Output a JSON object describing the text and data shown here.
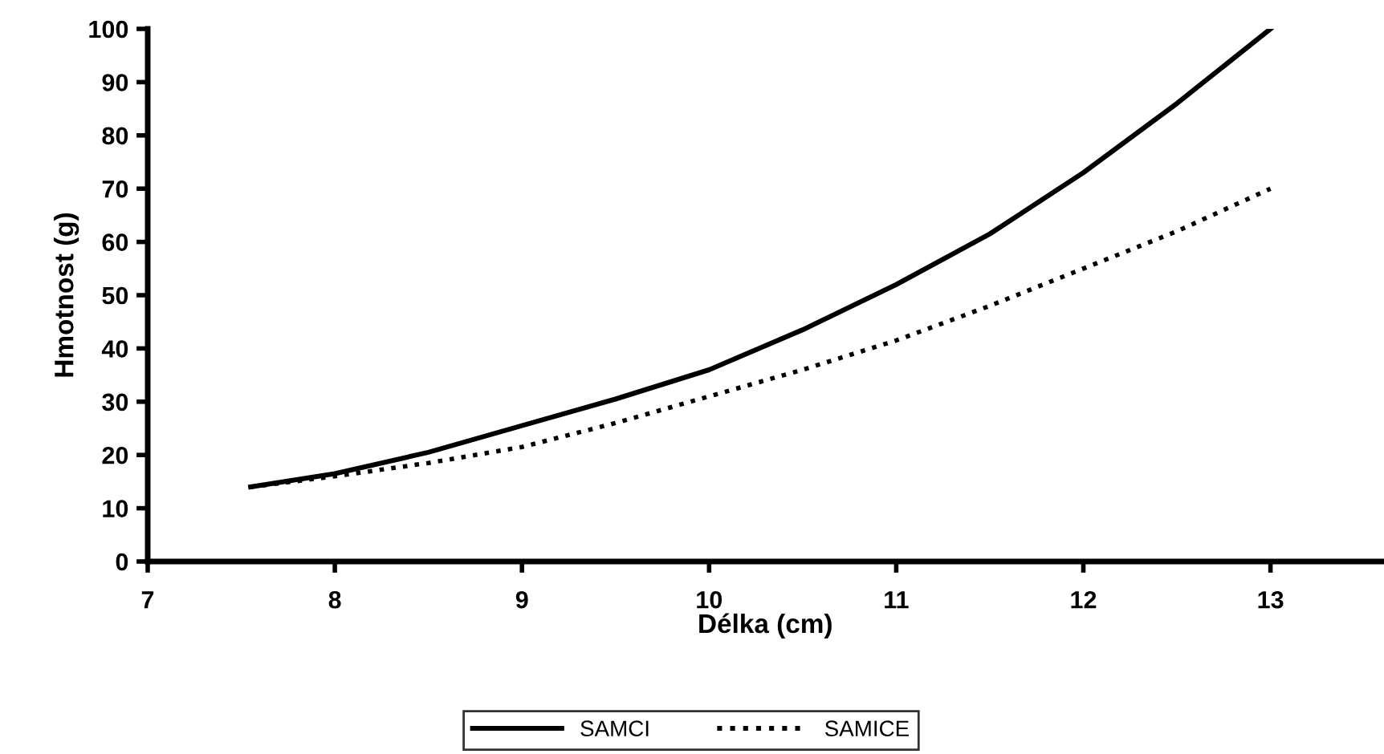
{
  "chart_data": {
    "type": "line",
    "xlabel": "Délka (cm)",
    "ylabel": "Hmotnost (g)",
    "xlim": [
      7,
      13.6
    ],
    "xticks": [
      7,
      8,
      9,
      10,
      11,
      12,
      13
    ],
    "ylim": [
      0,
      100
    ],
    "yticks": [
      0,
      10,
      20,
      30,
      40,
      50,
      60,
      70,
      80,
      90,
      100
    ],
    "grid": false,
    "legend": "bottom",
    "series": [
      {
        "name": "SAMCI",
        "color": "#000000",
        "line_style": "solid",
        "x": [
          7.55,
          8,
          8.5,
          9,
          9.5,
          10,
          10.5,
          11,
          11.5,
          12,
          12.5,
          13
        ],
        "values": [
          14,
          16.5,
          20.5,
          25.5,
          30.5,
          36,
          43.5,
          52,
          61.5,
          73,
          86,
          100
        ]
      },
      {
        "name": "SAMICE",
        "color": "#000000",
        "line_style": "dotted",
        "x": [
          7.55,
          8,
          8.5,
          9,
          9.5,
          10,
          10.5,
          11,
          11.5,
          12,
          12.5,
          13
        ],
        "values": [
          14,
          16,
          18.5,
          21.5,
          26,
          31,
          36,
          41.5,
          48,
          55,
          62,
          70
        ]
      }
    ]
  }
}
